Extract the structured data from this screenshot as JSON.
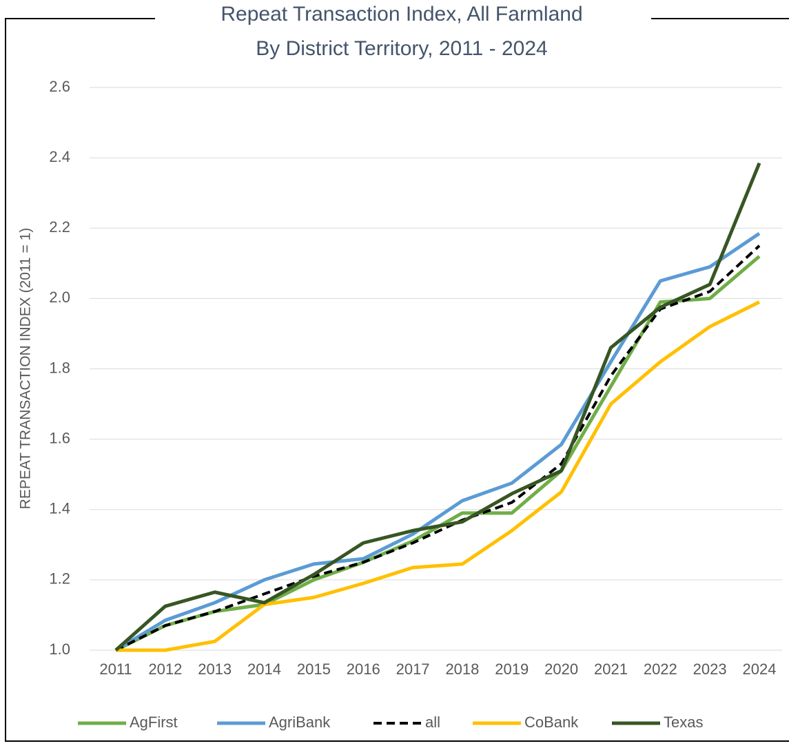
{
  "chart_data": {
    "type": "line",
    "title": "Repeat Transaction Index, All Farmland",
    "subtitle": "By District Territory, 2011 - 2024",
    "y_axis_label": "REPEAT TRANSACTION INDEX (2011 = 1)",
    "categories": [
      "2011",
      "2012",
      "2013",
      "2014",
      "2015",
      "2016",
      "2017",
      "2018",
      "2019",
      "2020",
      "2021",
      "2022",
      "2023",
      "2024"
    ],
    "series": [
      {
        "name": "AgFirst",
        "color": "#70ad47",
        "line_style": "solid",
        "values": [
          1.0,
          1.07,
          1.11,
          1.13,
          1.2,
          1.25,
          1.31,
          1.39,
          1.39,
          1.51,
          1.75,
          1.99,
          2.0,
          2.12
        ]
      },
      {
        "name": "AgriBank",
        "color": "#5b9bd5",
        "line_style": "solid",
        "values": [
          1.0,
          1.085,
          1.135,
          1.2,
          1.245,
          1.26,
          1.33,
          1.425,
          1.475,
          1.585,
          1.82,
          2.05,
          2.09,
          2.185
        ]
      },
      {
        "name": "all",
        "color": "#000000",
        "line_style": "dashed",
        "values": [
          1.0,
          1.07,
          1.11,
          1.16,
          1.21,
          1.25,
          1.305,
          1.37,
          1.42,
          1.53,
          1.78,
          1.97,
          2.02,
          2.15
        ]
      },
      {
        "name": "CoBank",
        "color": "#ffc000",
        "line_style": "solid",
        "values": [
          1.0,
          1.0,
          1.025,
          1.13,
          1.15,
          1.19,
          1.235,
          1.245,
          1.34,
          1.45,
          1.7,
          1.82,
          1.92,
          1.99
        ]
      },
      {
        "name": "Texas",
        "color": "#375623",
        "line_style": "solid",
        "values": [
          1.0,
          1.125,
          1.165,
          1.135,
          1.215,
          1.305,
          1.34,
          1.365,
          1.445,
          1.51,
          1.86,
          1.975,
          2.04,
          2.385
        ]
      }
    ],
    "ylim": [
      1.0,
      2.6
    ],
    "yticks": [
      {
        "value": 1.0,
        "label": "1.0"
      },
      1.2,
      1.4,
      1.6,
      1.8,
      {
        "value": 2.0,
        "label": "2.0"
      },
      2.2,
      2.4,
      2.6
    ],
    "grid": true,
    "legend": "bottom"
  }
}
